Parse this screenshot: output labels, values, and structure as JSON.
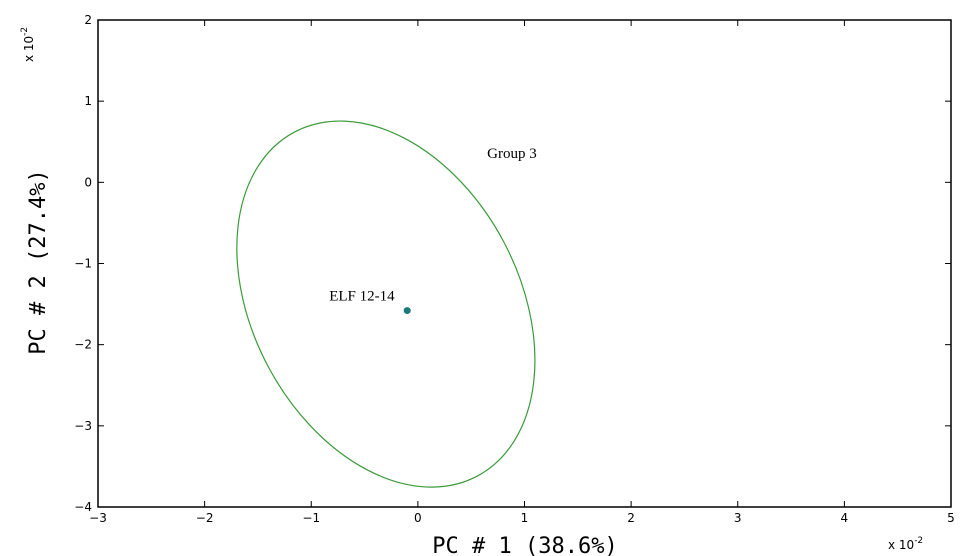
{
  "chart_data": {
    "type": "scatter",
    "title": "",
    "xlabel": "PC # 1 (38.6%)",
    "ylabel": "PC # 2 (27.4%)",
    "x_scale_label": "x 10",
    "x_scale_exp": "-2",
    "y_scale_label": "x 10",
    "y_scale_exp": "-2",
    "xlim": [
      -3,
      5
    ],
    "ylim": [
      -4,
      2
    ],
    "xticks": [
      -3,
      -2,
      -1,
      0,
      1,
      2,
      3,
      4,
      5
    ],
    "yticks": [
      -4,
      -3,
      -2,
      -1,
      0,
      1,
      2
    ],
    "tick_label_text": {
      "x": [
        "−3",
        "−2",
        "−1",
        "0",
        "1",
        "2",
        "3",
        "4",
        "5"
      ],
      "y": [
        "−4",
        "−3",
        "−2",
        "−1",
        "0",
        "1",
        "2"
      ]
    },
    "grid": false,
    "points": [
      {
        "label": "ELF 12-14",
        "x": -0.1,
        "y": -1.58,
        "color": "#1a7a7a"
      }
    ],
    "ellipses": [
      {
        "label": "Group 3",
        "center": [
          -0.3,
          -1.5
        ],
        "semi_axes": [
          1.25,
          2.4
        ],
        "rotation_deg": -28,
        "color": "#3a9a3a"
      }
    ],
    "axis_color": "#000000"
  }
}
